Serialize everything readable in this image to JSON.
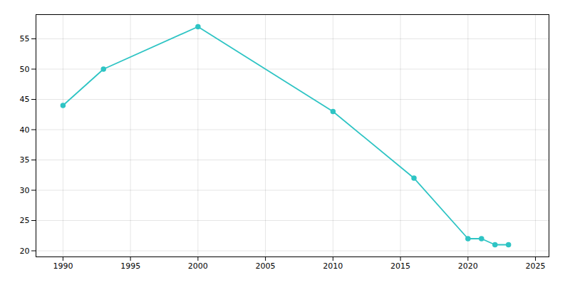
{
  "chart_data": {
    "type": "line",
    "x": [
      1990,
      1993,
      2000,
      2010,
      2016,
      2020,
      2021,
      2022,
      2023
    ],
    "values": [
      44,
      50,
      57,
      43,
      32,
      22,
      22,
      21,
      21
    ],
    "color": "#2EC4C4",
    "marker": "circle",
    "xlim": [
      1988,
      2026
    ],
    "ylim": [
      19,
      59
    ],
    "xticks": [
      1990,
      1995,
      2000,
      2005,
      2010,
      2015,
      2020,
      2025
    ],
    "yticks": [
      20,
      25,
      30,
      35,
      40,
      45,
      50,
      55
    ],
    "grid": true
  }
}
